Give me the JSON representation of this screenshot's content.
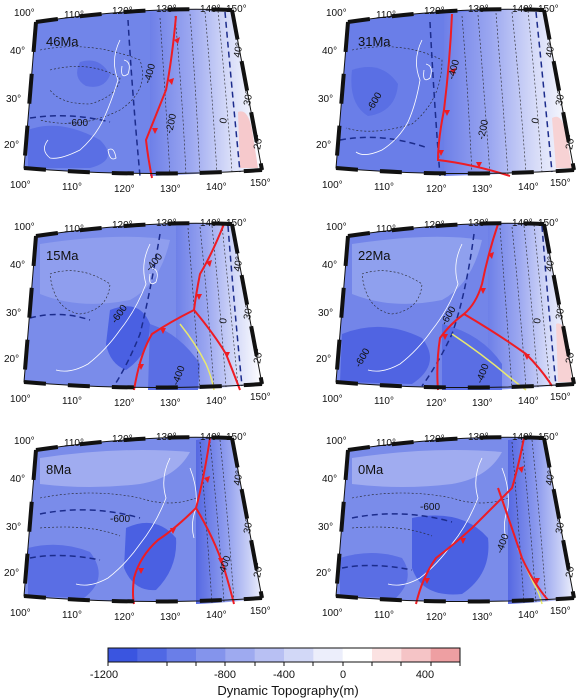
{
  "panels": [
    {
      "id": "p46",
      "age": "46Ma",
      "labels": [
        "-400",
        "-600",
        "-200",
        "0"
      ]
    },
    {
      "id": "p31",
      "age": "31Ma",
      "labels": [
        "-400",
        "-600",
        "-200",
        "0"
      ]
    },
    {
      "id": "p15",
      "age": "15Ma",
      "labels": [
        "-400",
        "-600",
        "-400",
        "0"
      ]
    },
    {
      "id": "p22",
      "age": "22Ma",
      "labels": [
        "-600",
        "-600",
        "-400",
        "0"
      ]
    },
    {
      "id": "p8",
      "age": "8Ma",
      "labels": [
        "-600",
        "-400"
      ]
    },
    {
      "id": "p0",
      "age": "0Ma",
      "labels": [
        "-600",
        "-400"
      ]
    }
  ],
  "lon_ticks_top": [
    "100°",
    "110°",
    "120°",
    "130°",
    "140°",
    "150°"
  ],
  "lon_ticks_bottom": [
    "100°",
    "110°",
    "120°",
    "130°",
    "140°",
    "150°"
  ],
  "lat_ticks_left": [
    "40°",
    "30°",
    "20°"
  ],
  "lat_ticks_right": [
    "40°",
    "30°",
    "20°"
  ],
  "colorbar": {
    "ticks": [
      "-1200",
      "-800",
      "-400",
      "0",
      "400"
    ],
    "title": "Dynamic Topography(m)",
    "colors": [
      "#3a55e0",
      "#5068e4",
      "#6a7ee8",
      "#8494ec",
      "#9eaaf0",
      "#b8c0f3",
      "#d2d8f7",
      "#eceefb",
      "#ffffff",
      "#fbe2e2",
      "#f5c4c6",
      "#ee9fa2"
    ]
  },
  "colors": {
    "trench": "#ee1c24",
    "coast": "#ffffff",
    "ridge": "#e8e870",
    "dashedblue": "#1c2c8c"
  }
}
